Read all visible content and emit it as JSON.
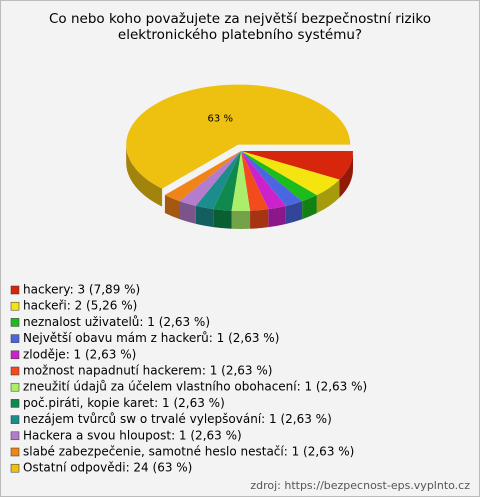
{
  "chart_data": {
    "type": "pie3d",
    "title": [
      "Co nebo koho považujete za největší bezpečnostní riziko",
      "elektronického platebního systému?"
    ],
    "categories": [
      "hackery: 3 (7,89 %)",
      "hackeři: 2 (5,26 %)",
      "neznalost uživatelů: 1 (2,63 %)",
      "Největší obavu mám z hackerů: 1 (2,63 %)",
      "zloděje: 1 (2,63 %)",
      "možnost napadnutí hackerem: 1 (2,63 %)",
      "zneužití údajů za účelem vlastního obohacení: 1 (2,63 %)",
      "poč.piráti, kopie karet: 1 (2,63 %)",
      "nezájem tvůrců sw o trvalé vylepšování: 1 (2,63 %)",
      "Hackera a svou hloupost: 1 (2,63 %)",
      "slabé zabezpečenie, samotné heslo nestačí: 1 (2,63 %)",
      "Ostatní odpovědi: 24 (63 %)"
    ],
    "values": [
      7.89,
      5.26,
      2.63,
      2.63,
      2.63,
      2.63,
      2.63,
      2.63,
      2.63,
      2.63,
      2.63,
      63
    ],
    "value_labels": [
      null,
      null,
      null,
      null,
      null,
      null,
      null,
      null,
      null,
      null,
      null,
      "63 %"
    ],
    "colors": [
      "#d8260c",
      "#f4e410",
      "#1cbc1c",
      "#4a66e0",
      "#cc22cc",
      "#f24c1c",
      "#aaee6a",
      "#0f8a4c",
      "#1c8c8c",
      "#b47ccc",
      "#f08418",
      "#eec010"
    ],
    "explode_index": 11,
    "source": "zdroj: https://bezpecnost-eps.vyplnto.cz"
  }
}
